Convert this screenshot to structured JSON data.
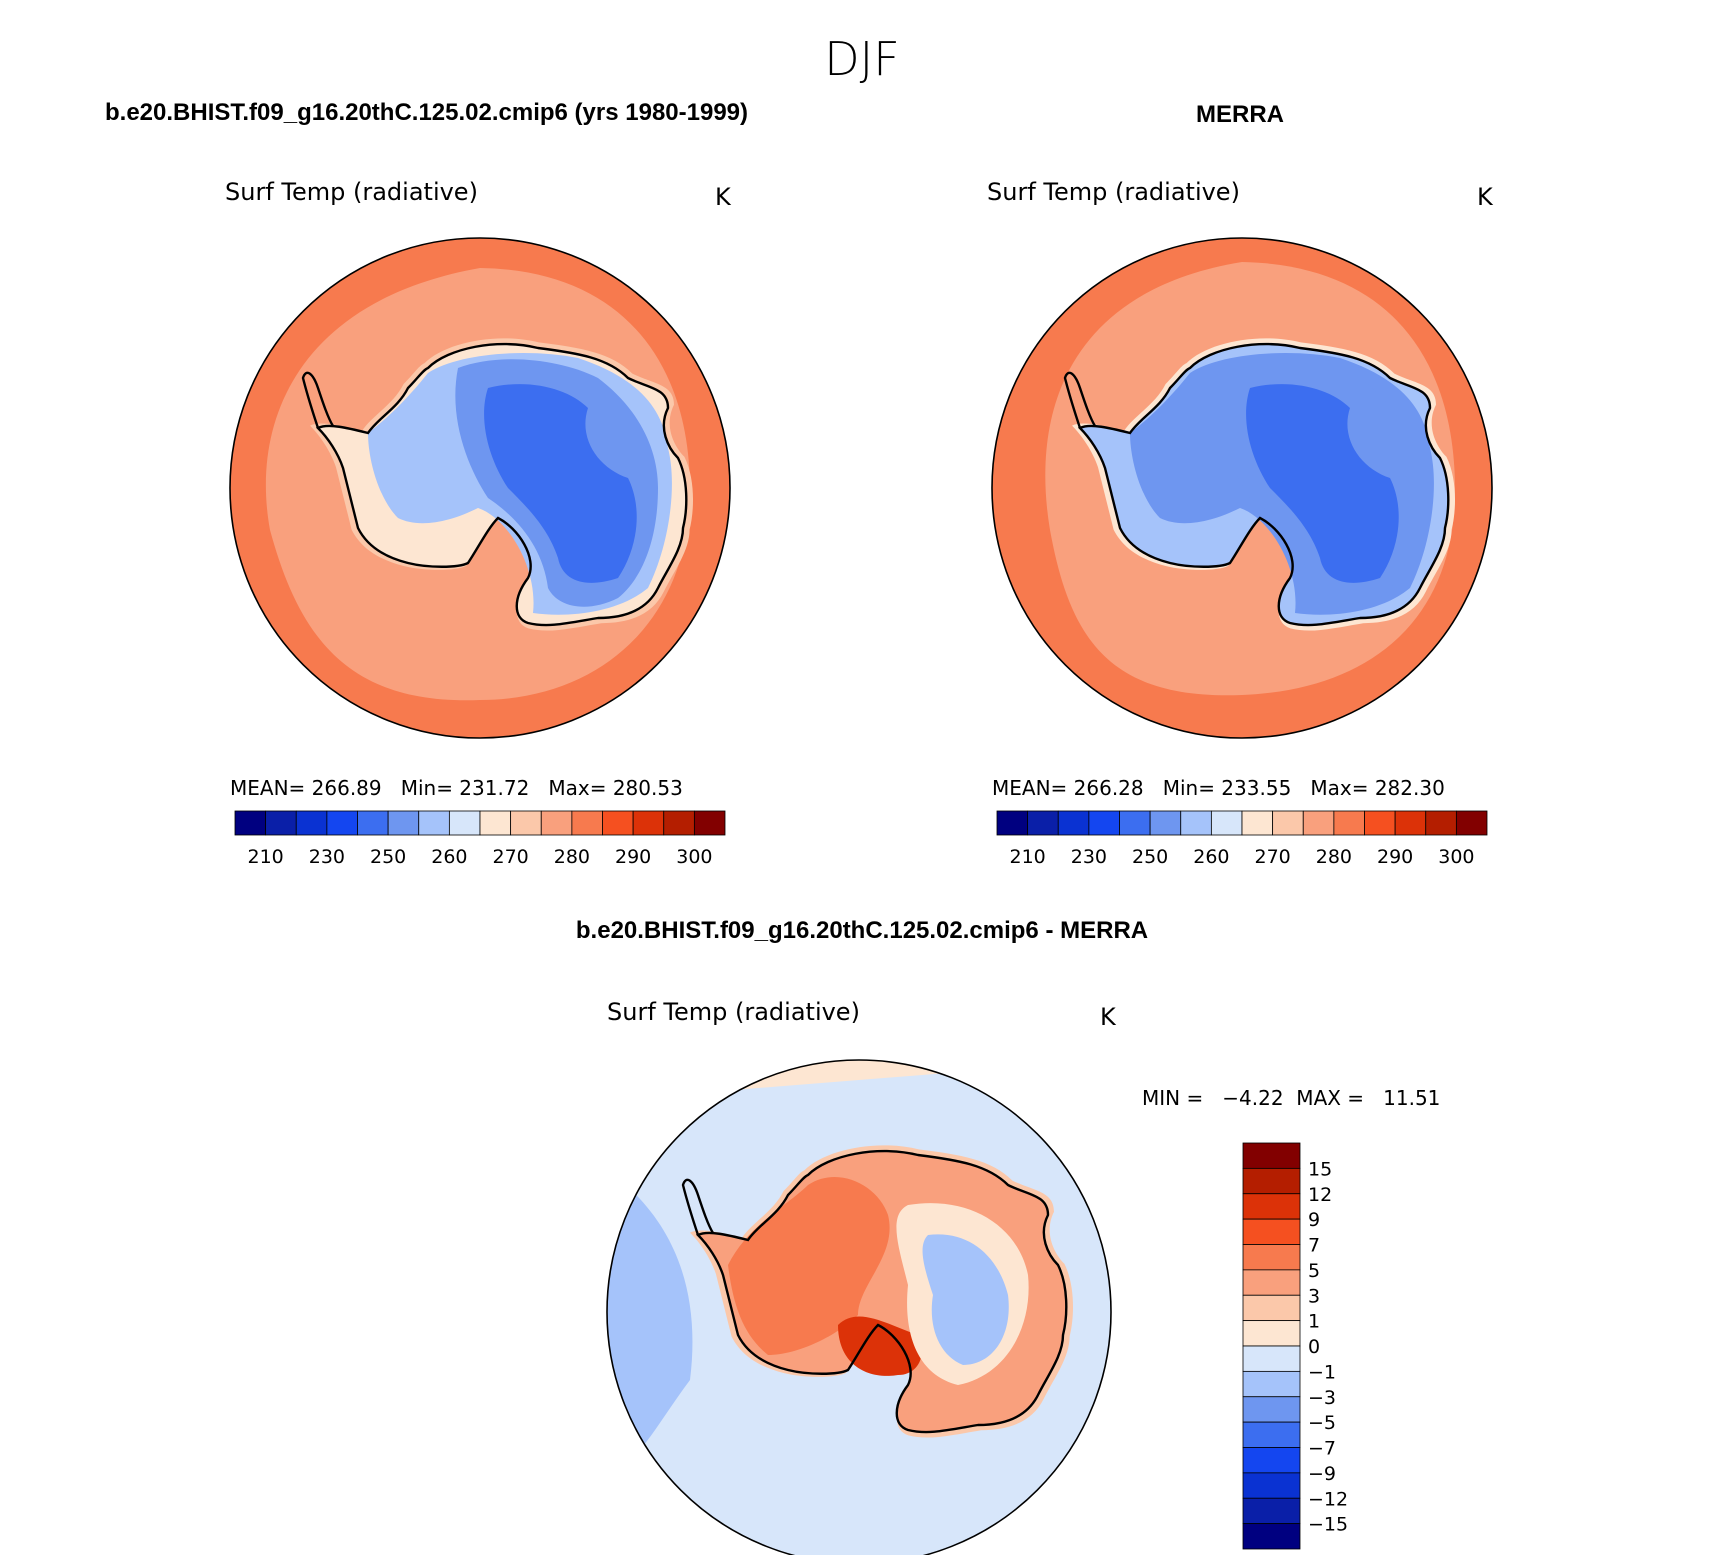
{
  "figure": {
    "season": "DJF"
  },
  "colors": {
    "abs_scale": [
      "#000080",
      "#0a1fa8",
      "#0a32d2",
      "#1446f0",
      "#3c6ef0",
      "#6e96f0",
      "#a5c3fa",
      "#d7e6fa",
      "#fde6d2",
      "#fbc8aa",
      "#f9a07d",
      "#f77a4e",
      "#f55020",
      "#dc3208",
      "#b41e00",
      "#820000"
    ],
    "diff_scale": [
      "#000080",
      "#0a1fa8",
      "#0a32d2",
      "#1446f0",
      "#3c6ef0",
      "#6e96f0",
      "#a5c3fa",
      "#d7e6fa",
      "#fde6d2",
      "#fbc8aa",
      "#f9a07d",
      "#f77a4e",
      "#f55020",
      "#dc3208",
      "#b41e00",
      "#820000"
    ],
    "coastline": "#000000"
  },
  "panels": [
    {
      "header": "b.e20.BHIST.f09_g16.20thC.125.02.cmip6 (yrs 1980-1999)",
      "variable": "Surf Temp (radiative)",
      "units": "K",
      "stats_text": "MEAN= 266.89   Min= 231.72   Max= 280.53",
      "colorbar_ticks": [
        "210",
        "230",
        "250",
        "260",
        "270",
        "280",
        "290",
        "300"
      ],
      "field": {
        "ocean_outer_band": "280",
        "ocean_inner_band": "275",
        "coastal_ring": "270",
        "ice_shelves": "265",
        "west_antarctica": "255",
        "east_plateau_edge": "250",
        "east_plateau_core": "240"
      }
    },
    {
      "header": "MERRA",
      "variable": "Surf Temp (radiative)",
      "units": "K",
      "stats_text": "MEAN= 266.28   Min= 233.55   Max= 282.30",
      "colorbar_ticks": [
        "210",
        "230",
        "250",
        "260",
        "270",
        "280",
        "290",
        "300"
      ],
      "field": {
        "ocean_outer_band": "280",
        "ocean_inner_band": "275",
        "coastal_ring": "265",
        "ice_shelves": "255",
        "west_antarctica": "250",
        "east_plateau_edge": "250",
        "east_plateau_core": "240"
      }
    }
  ],
  "difference": {
    "header": "b.e20.BHIST.f09_g16.20thC.125.02.cmip6 - MERRA",
    "variable": "Surf Temp (radiative)",
    "units": "K",
    "stats_text": "MIN =   −4.22  MAX =   11.51",
    "colorbar_labels": [
      "15",
      "12",
      "9",
      "7",
      "5",
      "3",
      "1",
      "0",
      "−1",
      "−3",
      "−5",
      "−7",
      "−9",
      "−12",
      "−15"
    ]
  }
}
